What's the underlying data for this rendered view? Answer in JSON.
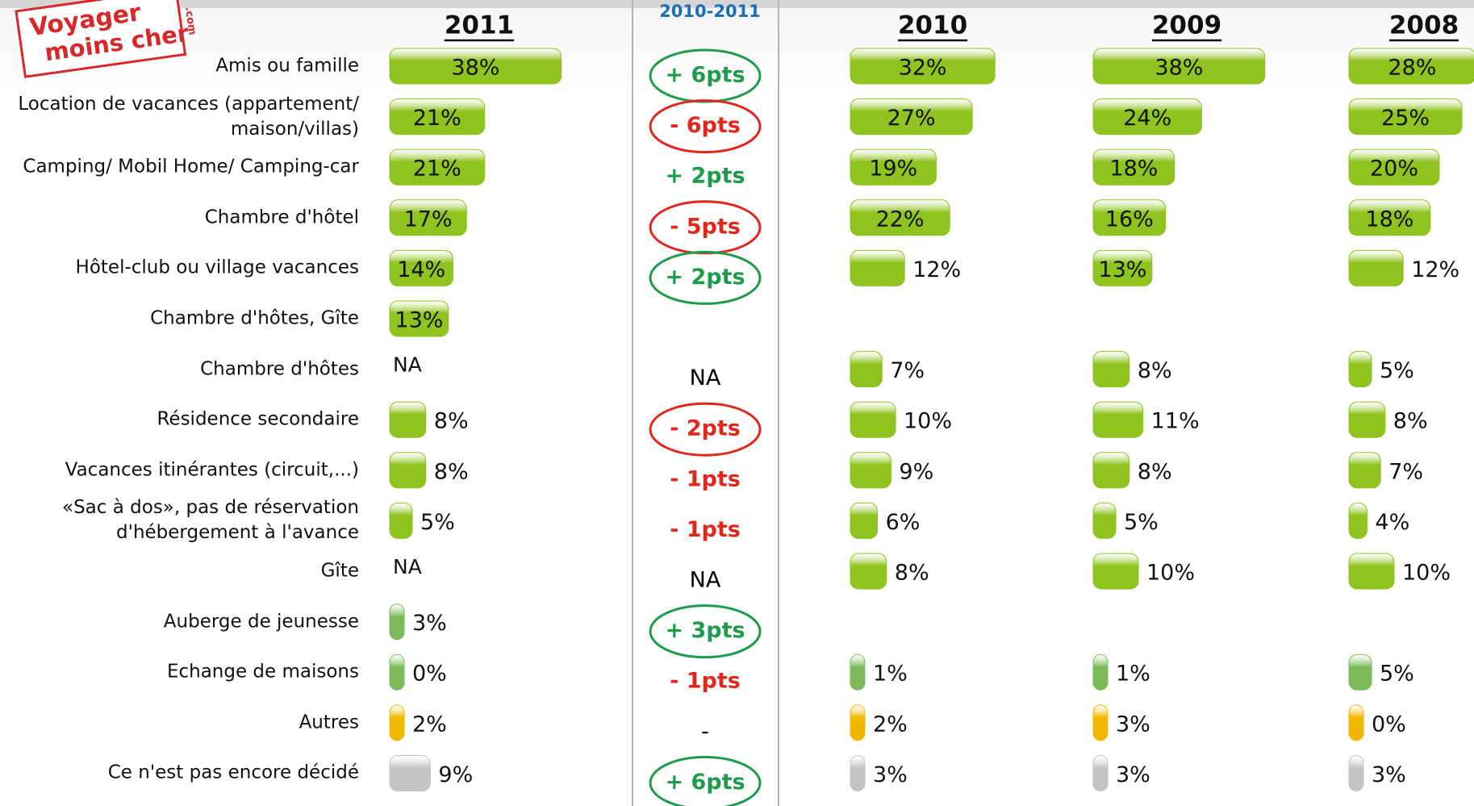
{
  "chart_data": {
    "type": "bar",
    "logo": {
      "line1": "Voyager",
      "line2": "moins cher",
      "suffix": ".com"
    },
    "categories": [
      "Amis ou famille",
      "Location de vacances (appartement/ maison/villas)",
      "Camping/ Mobil Home/ Camping-car",
      "Chambre d'hôtel",
      "Hôtel-club ou village vacances",
      "Chambre d'hôtes, Gîte",
      "Chambre d'hôtes",
      "Résidence secondaire",
      "Vacances itinérantes (circuit,...)",
      "«Sac à dos», pas de réservation d'hébergement à l'avance",
      "Gîte",
      "Auberge de jeunesse",
      "Echange de maisons",
      "Autres",
      "Ce n'est pas encore décidé"
    ],
    "colors": [
      "#8fc31f",
      "#8fc31f",
      "#8fc31f",
      "#8fc31f",
      "#8fc31f",
      "#8fc31f",
      "#8fc31f",
      "#8fc31f",
      "#8fc31f",
      "#8fc31f",
      "#8fc31f",
      "#7dbb5a",
      "#7dbb5a",
      "#f0b800",
      "#c4c4c4"
    ],
    "series": [
      {
        "name": "2011",
        "values": [
          38,
          21,
          21,
          17,
          14,
          13,
          null,
          8,
          8,
          5,
          null,
          3,
          0,
          2,
          9
        ],
        "value_labels": [
          "38%",
          "21%",
          "21%",
          "17%",
          "14%",
          "13%",
          "NA",
          "8%",
          "8%",
          "5%",
          "NA",
          "3%",
          "0%",
          "2%",
          "9%"
        ]
      },
      {
        "name": "2010",
        "values": [
          32,
          27,
          19,
          22,
          12,
          null,
          7,
          10,
          9,
          6,
          8,
          null,
          1,
          2,
          3
        ],
        "value_labels": [
          "32%",
          "27%",
          "19%",
          "22%",
          "12%",
          null,
          "7%",
          "10%",
          "9%",
          "6%",
          "8%",
          null,
          "1%",
          "2%",
          "3%"
        ]
      },
      {
        "name": "2009",
        "values": [
          38,
          24,
          18,
          16,
          13,
          null,
          8,
          11,
          8,
          5,
          10,
          null,
          1,
          3,
          3
        ],
        "value_labels": [
          "38%",
          "24%",
          "18%",
          "16%",
          "13%",
          null,
          "8%",
          "11%",
          "8%",
          "5%",
          "10%",
          null,
          "1%",
          "3%",
          "3%"
        ]
      },
      {
        "name": "2008",
        "values": [
          28,
          25,
          20,
          18,
          12,
          null,
          5,
          8,
          7,
          4,
          10,
          null,
          5,
          0,
          3
        ],
        "value_labels": [
          "28%",
          "25%",
          "20%",
          "18%",
          "12%",
          null,
          "5%",
          "8%",
          "7%",
          "4%",
          "10%",
          null,
          "5%",
          "0%",
          "3%"
        ]
      }
    ],
    "diff_title": "2010-2011",
    "diffs": [
      {
        "label": "+ 6pts",
        "color": "#1e9b4b",
        "circled": true
      },
      {
        "label": "- 6pts",
        "color": "#e0281e",
        "circled": true
      },
      {
        "label": "+ 2pts",
        "color": "#1e9b4b",
        "circled": false
      },
      {
        "label": "- 5pts",
        "color": "#e0281e",
        "circled": true
      },
      {
        "label": "+ 2pts",
        "color": "#1e9b4b",
        "circled": true
      },
      null,
      {
        "label": "NA",
        "color": "#000000",
        "circled": false
      },
      {
        "label": "- 2pts",
        "color": "#e0281e",
        "circled": true
      },
      {
        "label": "- 1pts",
        "color": "#e0281e",
        "circled": false
      },
      {
        "label": "- 1pts",
        "color": "#e0281e",
        "circled": false
      },
      {
        "label": "NA",
        "color": "#000000",
        "circled": false
      },
      {
        "label": "+ 3pts",
        "color": "#1e9b4b",
        "circled": true
      },
      {
        "label": "- 1pts",
        "color": "#e0281e",
        "circled": false
      },
      {
        "label": "-",
        "color": "#000000",
        "circled": false
      },
      {
        "label": "+ 6pts",
        "color": "#1e9b4b",
        "circled": true
      }
    ]
  }
}
